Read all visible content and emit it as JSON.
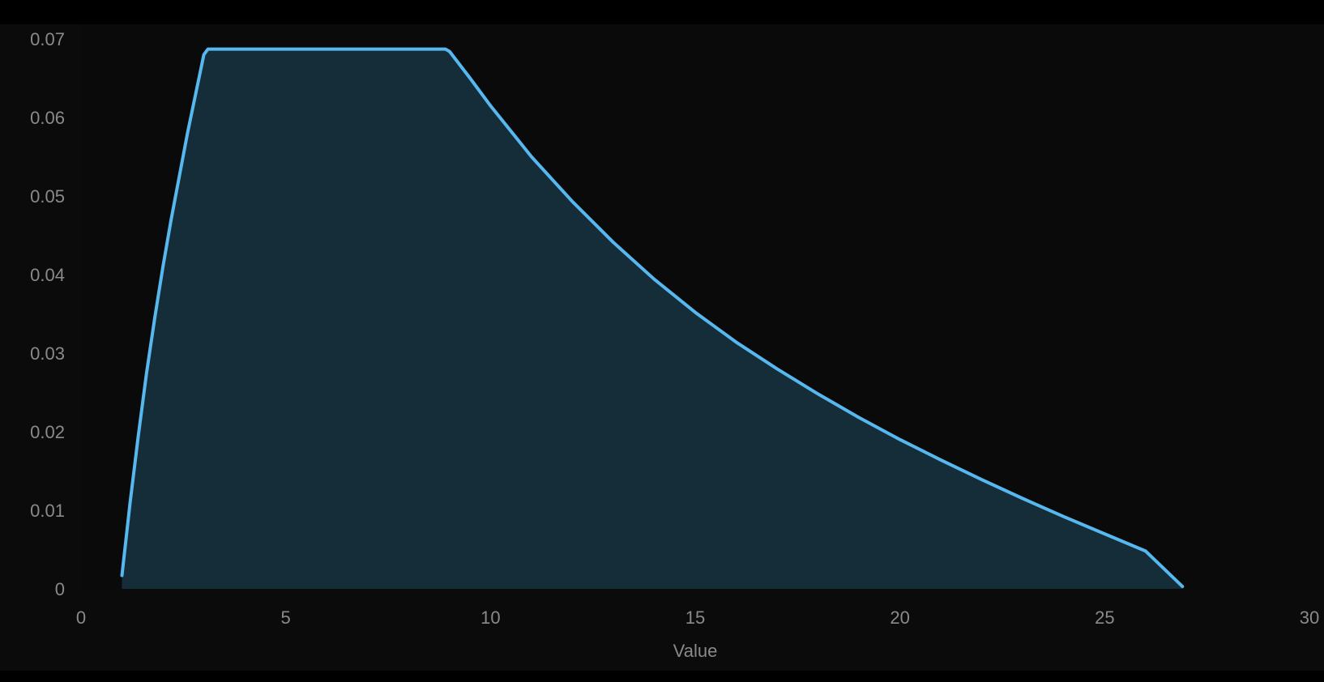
{
  "chart_data": {
    "type": "area",
    "title": "",
    "xlabel": "Value",
    "ylabel": "",
    "xlim": [
      0,
      30
    ],
    "ylim": [
      0,
      0.07
    ],
    "x_ticks": [
      "0",
      "5",
      "10",
      "15",
      "20",
      "25",
      "30"
    ],
    "y_ticks": [
      "0",
      "0.01",
      "0.02",
      "0.03",
      "0.04",
      "0.05",
      "0.06",
      "0.07"
    ],
    "grid": false,
    "legend": "none",
    "series": [
      {
        "points": [
          [
            1.0,
            0.0017
          ],
          [
            1.2,
            0.011
          ],
          [
            1.4,
            0.0195
          ],
          [
            1.6,
            0.0275
          ],
          [
            1.8,
            0.0345
          ],
          [
            2.0,
            0.041
          ],
          [
            2.2,
            0.047
          ],
          [
            2.4,
            0.0525
          ],
          [
            2.6,
            0.058
          ],
          [
            2.8,
            0.063
          ],
          [
            3.0,
            0.068
          ],
          [
            3.1,
            0.0687
          ],
          [
            4.0,
            0.0687
          ],
          [
            5.0,
            0.0687
          ],
          [
            6.0,
            0.0687
          ],
          [
            7.0,
            0.0687
          ],
          [
            8.0,
            0.0687
          ],
          [
            8.9,
            0.0687
          ],
          [
            9.0,
            0.0684
          ],
          [
            9.5,
            0.065
          ],
          [
            10.0,
            0.0615
          ],
          [
            11.0,
            0.055
          ],
          [
            12.0,
            0.0493
          ],
          [
            13.0,
            0.0441
          ],
          [
            14.0,
            0.0394
          ],
          [
            15.0,
            0.0352
          ],
          [
            16.0,
            0.0314
          ],
          [
            17.0,
            0.028
          ],
          [
            18.0,
            0.0248
          ],
          [
            19.0,
            0.0218
          ],
          [
            20.0,
            0.019
          ],
          [
            21.0,
            0.0164
          ],
          [
            22.0,
            0.0139
          ],
          [
            23.0,
            0.0115
          ],
          [
            24.0,
            0.0092
          ],
          [
            25.0,
            0.007
          ],
          [
            26.0,
            0.0048
          ],
          [
            26.9,
            0.0003
          ]
        ]
      }
    ],
    "colors": {
      "line": "#56b8ee",
      "fill": "#152c39",
      "background": "#0b0b0b",
      "text": "#8a8a8a"
    }
  }
}
